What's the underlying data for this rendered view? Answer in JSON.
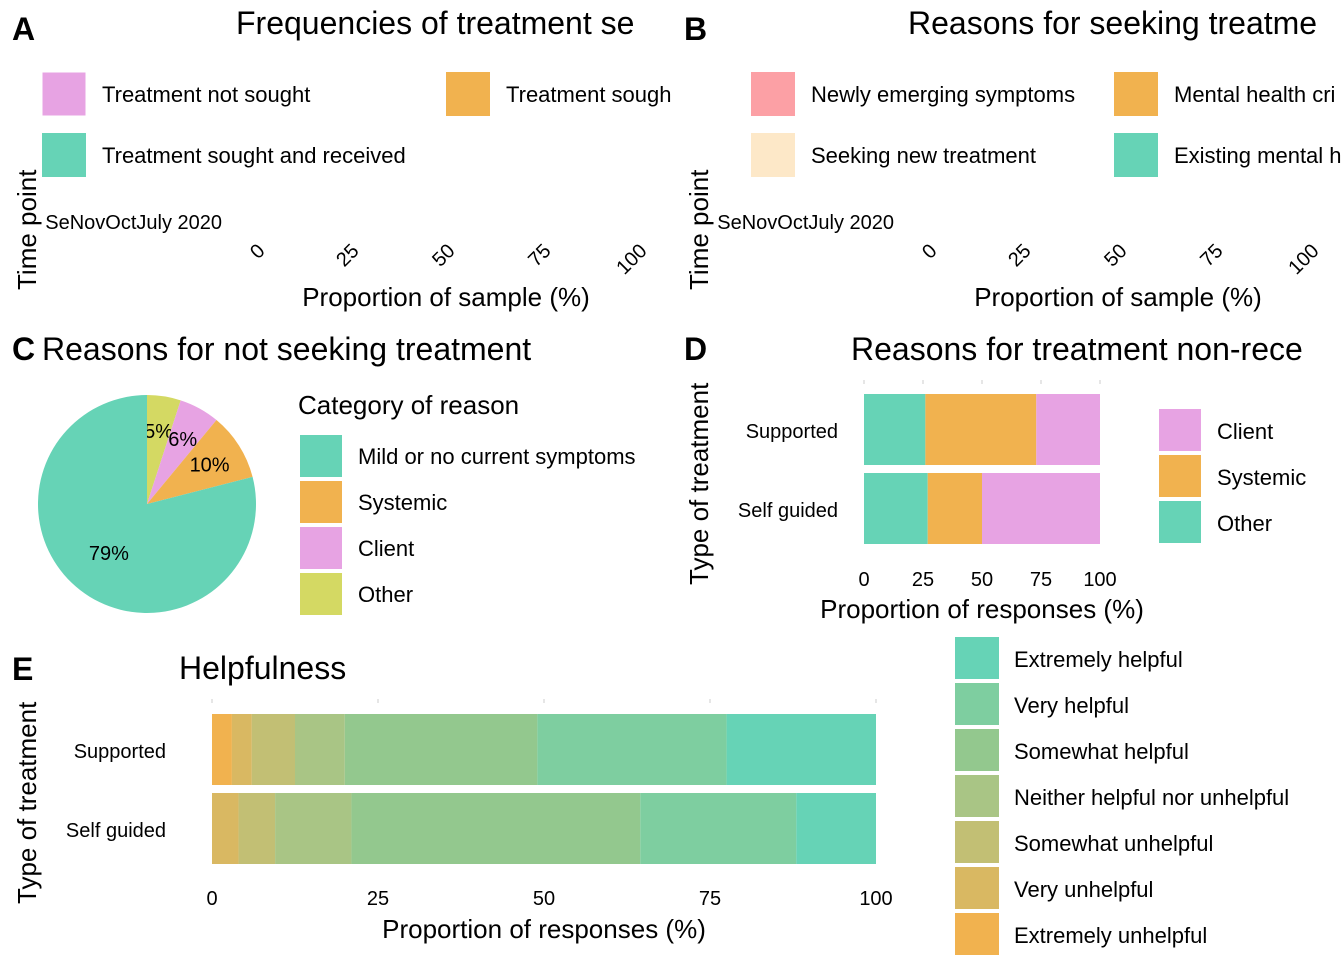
{
  "colors": {
    "pink": "#E7A3E3",
    "orange": "#F1B24F",
    "teal": "#66D3B6",
    "salmon": "#FCA0A5",
    "cream": "#FDE8C8",
    "olive": "#D4D963",
    "extremely_helpful": "#66D3B6",
    "very_helpful": "#7ECEA0",
    "somewhat_helpful": "#93C88E",
    "neither": "#A9C585",
    "somewhat_unhelpful": "#C2BF74",
    "very_unhelpful": "#D9B862",
    "extremely_unhelpful": "#F1B24F"
  },
  "panelA": {
    "tag": "A",
    "title": "Frequencies of treatment se",
    "legend": [
      "Treatment not sought",
      "Treatment sough",
      "Treatment sought and received"
    ],
    "ylabel": "Time point",
    "y_overlap_label": "SeNovOctJuly 2020",
    "xticks": [
      "0",
      "25",
      "50",
      "75",
      "100"
    ],
    "xlabel": "Proportion of sample (%)"
  },
  "panelB": {
    "tag": "B",
    "title": "Reasons for seeking treatme",
    "legend": [
      "Newly emerging symptoms",
      "Mental health cri",
      "Seeking new treatment",
      "Existing mental h"
    ],
    "ylabel": "Time point",
    "y_overlap_label": "SeNovOctJuly 2020",
    "xticks": [
      "0",
      "25",
      "50",
      "75",
      "100"
    ],
    "xlabel": "Proportion of sample (%)"
  },
  "panelC": {
    "tag": "C",
    "title": "Reasons for not seeking treatment",
    "legend_title": "Category of reason",
    "legend": [
      "Mild or no current symptoms",
      "Systemic",
      "Client",
      "Other"
    ]
  },
  "panelD": {
    "tag": "D",
    "title": "Reasons for treatment non-rece",
    "ylabel": "Type of treatment",
    "legend": [
      "Client",
      "Systemic",
      "Other"
    ],
    "xticks": [
      "0",
      "25",
      "50",
      "75",
      "100"
    ],
    "xlabel": "Proportion of responses (%)"
  },
  "panelE": {
    "tag": "E",
    "title": "Helpfulness",
    "ylabel": "Type of treatment",
    "legend": [
      "Extremely helpful",
      "Very helpful",
      "Somewhat helpful",
      "Neither helpful nor unhelpful",
      "Somewhat unhelpful",
      "Very unhelpful",
      "Extremely unhelpful"
    ],
    "xticks": [
      "0",
      "25",
      "50",
      "75",
      "100"
    ],
    "xlabel": "Proportion of responses (%)"
  },
  "chart_data": [
    {
      "type": "pie",
      "title": "Reasons for not seeking treatment",
      "legend_title": "Category of reason",
      "categories": [
        "Mild or no current symptoms",
        "Systemic",
        "Client",
        "Other"
      ],
      "values": [
        79,
        10,
        6,
        5
      ],
      "labels": [
        "79%",
        "10%",
        "6%",
        "5%"
      ]
    },
    {
      "type": "bar",
      "orientation": "horizontal",
      "stacked": true,
      "title": "Reasons for treatment non-rece",
      "categories": [
        "Supported",
        "Self guided"
      ],
      "series": [
        {
          "name": "Other",
          "values": [
            26,
            27
          ]
        },
        {
          "name": "Systemic",
          "values": [
            47,
            23
          ]
        },
        {
          "name": "Client",
          "values": [
            27,
            50
          ]
        }
      ],
      "xlabel": "Proportion of responses (%)",
      "ylabel": "Type of treatment",
      "xlim": [
        0,
        100
      ]
    },
    {
      "type": "bar",
      "orientation": "horizontal",
      "stacked": true,
      "title": "Helpfulness",
      "categories": [
        "Supported",
        "Self guided"
      ],
      "series": [
        {
          "name": "Extremely unhelpful",
          "values": [
            3,
            0
          ]
        },
        {
          "name": "Very unhelpful",
          "values": [
            3,
            4
          ]
        },
        {
          "name": "Somewhat unhelpful",
          "values": [
            6.5,
            5.5
          ]
        },
        {
          "name": "Neither helpful nor unhelpful",
          "values": [
            7.5,
            11.5
          ]
        },
        {
          "name": "Somewhat helpful",
          "values": [
            29,
            43.5
          ]
        },
        {
          "name": "Very helpful",
          "values": [
            28.5,
            23.5
          ]
        },
        {
          "name": "Extremely helpful",
          "values": [
            22.5,
            12
          ]
        }
      ],
      "xlabel": "Proportion of responses (%)",
      "ylabel": "Type of treatment",
      "xlim": [
        0,
        100
      ]
    }
  ]
}
